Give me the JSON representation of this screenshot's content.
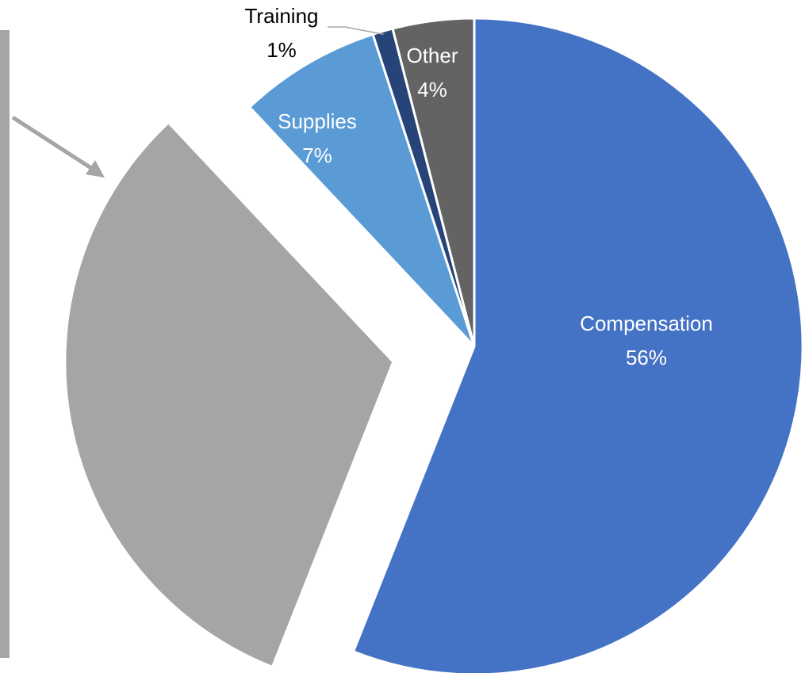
{
  "chart_data": {
    "type": "pie",
    "categories": [
      "Compensation",
      null,
      "Supplies",
      "Training",
      "Other"
    ],
    "values": [
      56,
      32,
      7,
      1,
      4
    ],
    "value_labels": [
      "56%",
      null,
      "7%",
      "1%",
      "4%"
    ],
    "colors": [
      "#4472c4",
      "#a5a5a5",
      "#5b9bd5",
      "#264478",
      "#636363"
    ],
    "exploded": [
      false,
      true,
      false,
      false,
      false
    ]
  }
}
